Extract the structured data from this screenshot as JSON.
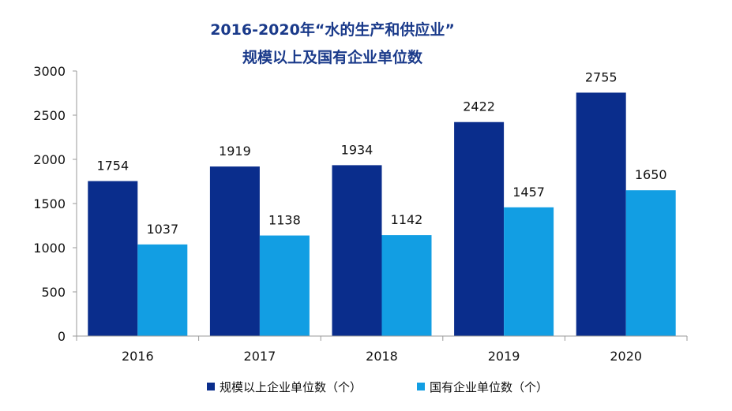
{
  "chart_data": {
    "type": "bar",
    "title": "2016-2020年“水的生产和供应业”",
    "subtitle": "规模以上及国有企业单位数",
    "categories": [
      "2016",
      "2017",
      "2018",
      "2019",
      "2020"
    ],
    "series": [
      {
        "name": "规模以上企业单位数（个）",
        "values": [
          1754,
          1919,
          1934,
          2422,
          2755
        ],
        "color": "#0a2d8c"
      },
      {
        "name": "国有企业单位数（个）",
        "values": [
          1037,
          1138,
          1142,
          1457,
          1650
        ],
        "color": "#129ee3"
      }
    ],
    "ylim": [
      0,
      3000
    ],
    "yticks": [
      "0",
      "500",
      "1000",
      "1500",
      "2000",
      "2500",
      "3000"
    ],
    "grid": false,
    "legend_position": "bottom"
  }
}
